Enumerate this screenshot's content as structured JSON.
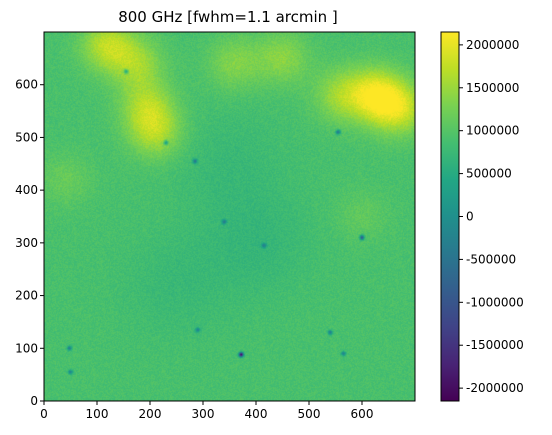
{
  "chart_data": {
    "type": "heatmap",
    "title": "800 GHz  [fwhm=1.1 arcmin ]",
    "xlabel": "",
    "ylabel": "",
    "xlim": [
      0,
      700
    ],
    "ylim": [
      0,
      700
    ],
    "x_ticks": [
      0,
      100,
      200,
      300,
      400,
      500,
      600
    ],
    "y_ticks": [
      0,
      100,
      200,
      300,
      400,
      500,
      600
    ],
    "colormap": "viridis",
    "colorbar": {
      "vmin": -2150000,
      "vmax": 2150000,
      "ticks": [
        2000000,
        1500000,
        1000000,
        500000,
        0,
        -500000,
        -1000000,
        -1500000,
        -2000000
      ],
      "tick_labels": [
        "2000000",
        "1500000",
        "1000000",
        "500000",
        "0",
        "-500000",
        "-1000000",
        "-1500000",
        "-2000000"
      ]
    },
    "background_level": 900000,
    "bright_regions": [
      {
        "x": 120,
        "y": 675,
        "level": 1700000
      },
      {
        "x": 175,
        "y": 640,
        "level": 1500000
      },
      {
        "x": 195,
        "y": 560,
        "level": 1550000
      },
      {
        "x": 210,
        "y": 510,
        "level": 1600000
      },
      {
        "x": 360,
        "y": 640,
        "level": 1350000
      },
      {
        "x": 450,
        "y": 650,
        "level": 1400000
      },
      {
        "x": 560,
        "y": 580,
        "level": 1500000
      },
      {
        "x": 625,
        "y": 580,
        "level": 2000000
      },
      {
        "x": 670,
        "y": 555,
        "level": 1800000
      },
      {
        "x": 40,
        "y": 420,
        "level": 1150000
      },
      {
        "x": 600,
        "y": 350,
        "level": 1100000
      }
    ],
    "dim_regions": [
      {
        "x": 400,
        "y": 300,
        "level": 700000
      },
      {
        "x": 250,
        "y": 220,
        "level": 750000
      },
      {
        "x": 350,
        "y": 450,
        "level": 750000
      }
    ],
    "point_sources": [
      {
        "x": 372,
        "y": 88,
        "level": -2000000
      },
      {
        "x": 600,
        "y": 310,
        "level": -1000000
      },
      {
        "x": 555,
        "y": 510,
        "level": -500000
      },
      {
        "x": 285,
        "y": 455,
        "level": -300000
      },
      {
        "x": 48,
        "y": 100,
        "level": -300000
      },
      {
        "x": 540,
        "y": 130,
        "level": -300000
      },
      {
        "x": 565,
        "y": 90,
        "level": -200000
      },
      {
        "x": 230,
        "y": 490,
        "level": -200000
      },
      {
        "x": 340,
        "y": 340,
        "level": -200000
      },
      {
        "x": 155,
        "y": 625,
        "level": -200000
      },
      {
        "x": 50,
        "y": 55,
        "level": -200000
      },
      {
        "x": 290,
        "y": 135,
        "level": -200000
      },
      {
        "x": 415,
        "y": 295,
        "level": -150000
      }
    ]
  }
}
